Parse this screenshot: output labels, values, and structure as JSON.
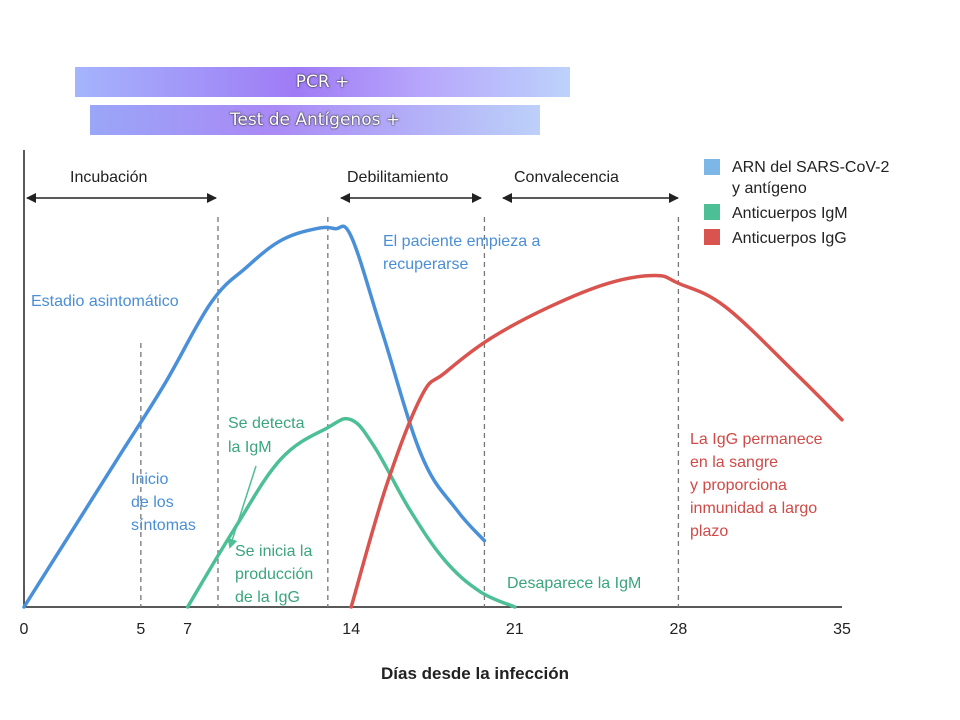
{
  "banners": {
    "pcr": "PCR  +",
    "antigen": "Test de Antígenos  +"
  },
  "colors": {
    "blue": "#4a90d9",
    "green": "#4dbf96",
    "red": "#d9534f",
    "blue_text": "#4a8ed6",
    "green_text": "#3aa57c",
    "red_text": "#d04a47",
    "axis": "#222222",
    "divider": "#777777"
  },
  "phases": {
    "incubation": "Incubación",
    "weakening": "Debilitamiento",
    "convalescence": "Convalecencia"
  },
  "annotations": {
    "asymptomatic": "Estadio asintomático",
    "recovery": [
      "El paciente empieza a",
      "recuperarse"
    ],
    "symptoms": [
      "Inicio",
      "de los",
      "síntomas"
    ],
    "igm_detect": [
      "Se detecta",
      "la IgM"
    ],
    "igg_start": [
      "Se inicia la",
      "producción",
      "de la IgG"
    ],
    "igm_gone": "Desaparece la IgM",
    "igg_stays": [
      "La IgG permanece",
      "en la sangre",
      "y proporciona",
      "inmunidad a largo",
      "plazo"
    ]
  },
  "chart_data": {
    "type": "line",
    "xlabel": "Días desde la infección",
    "ylabel": "",
    "xlim": [
      0,
      35
    ],
    "x_ticks": [
      0,
      5,
      7,
      14,
      21,
      28,
      35
    ],
    "grid": false,
    "legend_position": "top-right",
    "legend": [
      "ARN del SARS-CoV-2\ny antígeno",
      "Anticuerpos IgM",
      "Anticuerpos IgG"
    ],
    "dashed_markers_days": [
      5,
      8.3,
      13,
      19.7,
      28
    ],
    "series": [
      {
        "name": "ARN del SARS-CoV-2 y antígeno",
        "color": "#4a90d9",
        "x": [
          0,
          2,
          4,
          6,
          8,
          9.5,
          11,
          12.5,
          13.3,
          14,
          15.3,
          17,
          18.5,
          19.7
        ],
        "y": [
          0,
          19,
          38,
          57,
          78,
          87,
          94,
          97,
          97,
          95,
          71,
          39,
          25,
          17
        ]
      },
      {
        "name": "Anticuerpos IgM",
        "color": "#4dbf96",
        "x": [
          7,
          9,
          11,
          13,
          14,
          15,
          16.5,
          18,
          19.5,
          21
        ],
        "y": [
          0,
          20,
          38,
          46,
          48,
          41,
          25,
          12,
          4,
          0
        ]
      },
      {
        "name": "Anticuerpos IgG",
        "color": "#d9534f",
        "x": [
          14,
          15.5,
          17,
          18,
          20,
          22.5,
          25,
          27,
          28,
          30,
          33,
          35
        ],
        "y": [
          0,
          31,
          54,
          60,
          69,
          77,
          83,
          85,
          83,
          77,
          60,
          48
        ]
      }
    ]
  }
}
